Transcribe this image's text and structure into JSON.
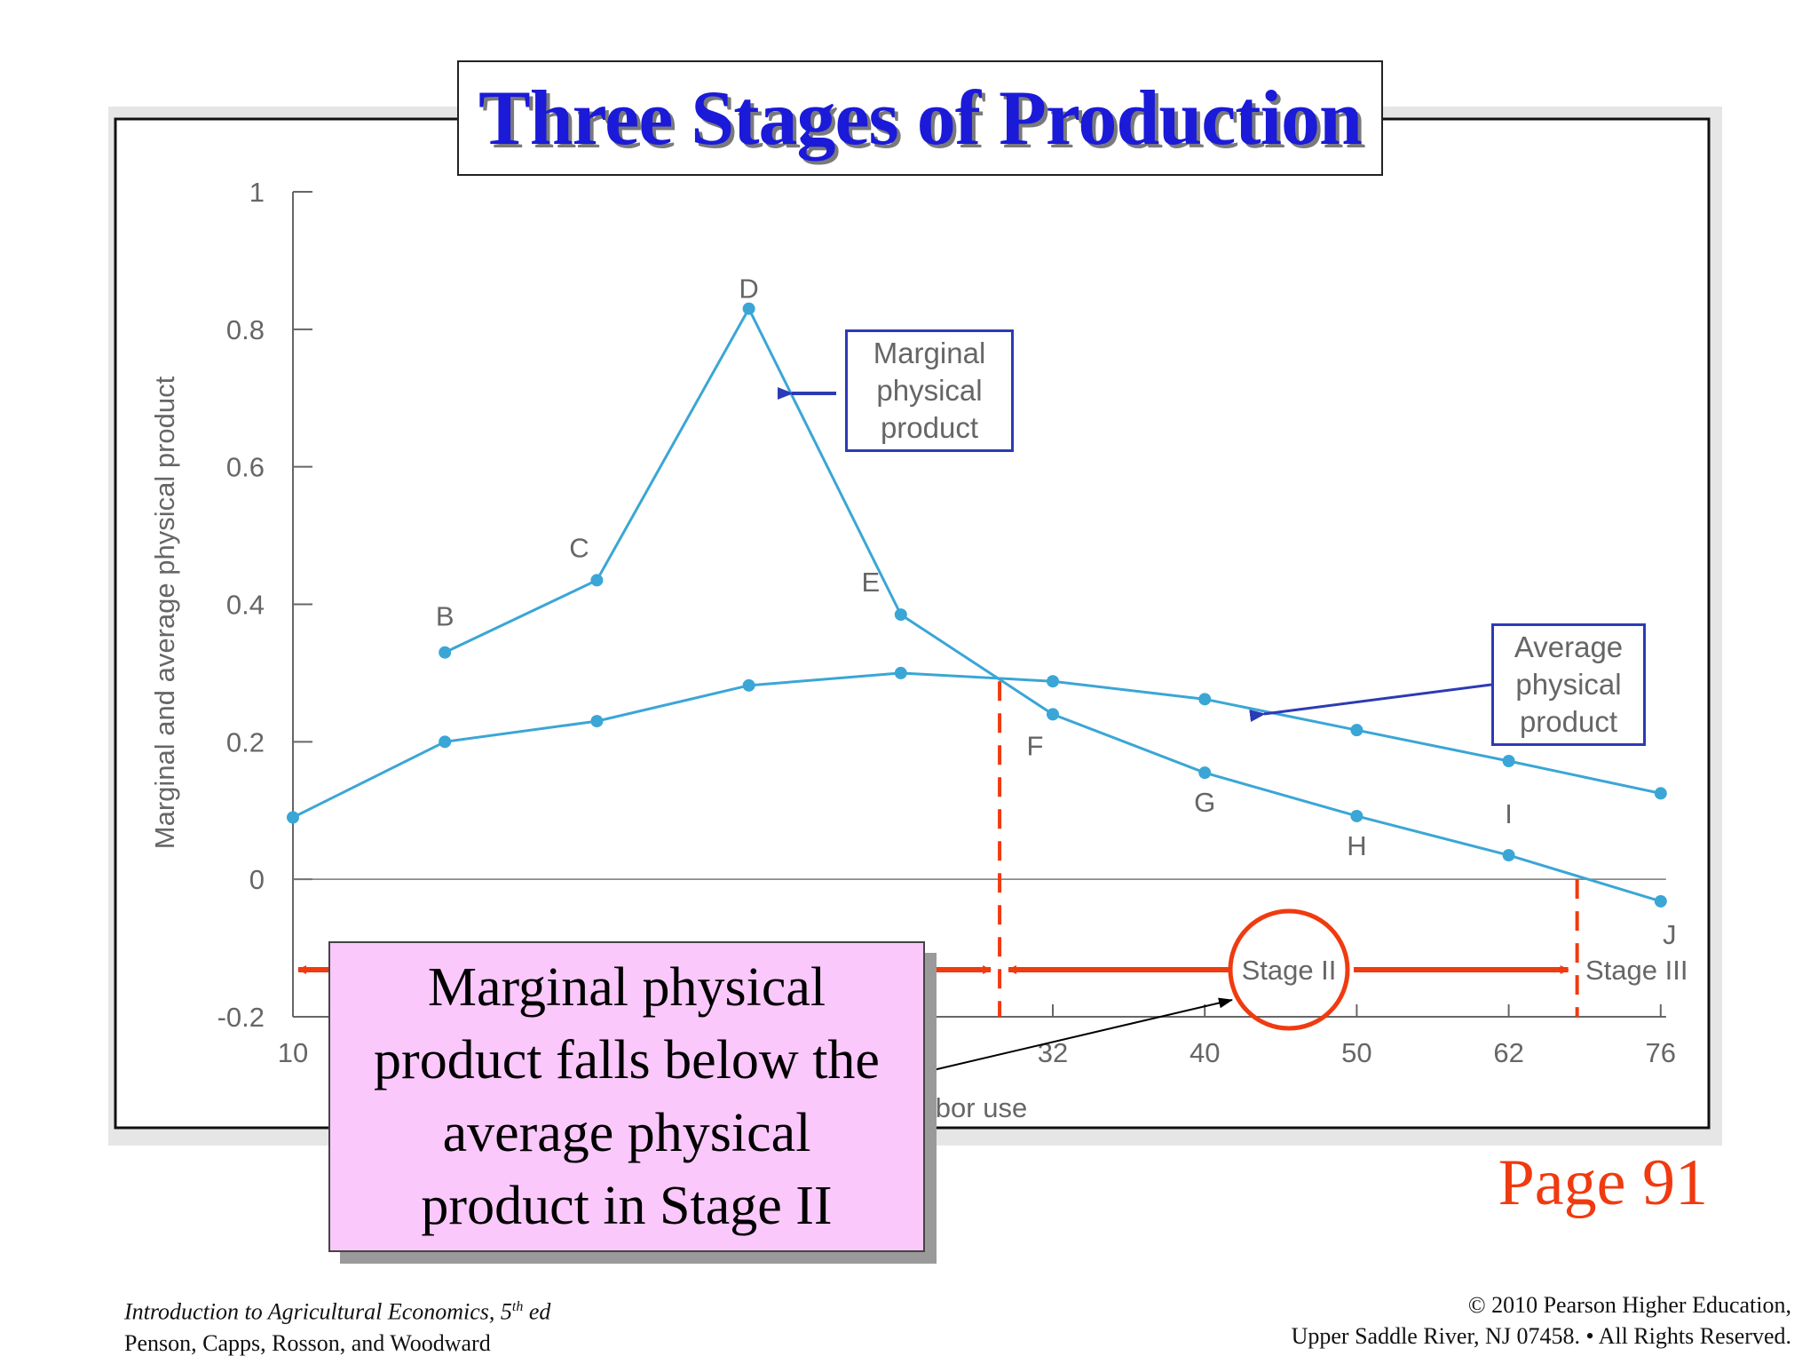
{
  "title": "Three Stages of Production",
  "legend": {
    "mpp": [
      "Marginal",
      "physical",
      "product"
    ],
    "app": [
      "Average",
      "physical",
      "product"
    ]
  },
  "callout_lines": [
    "Marginal physical",
    "product falls below the",
    "average physical",
    "product in Stage II"
  ],
  "page_ref": "Page 91",
  "footer": {
    "book_title": "Introduction to Agricultural Economics, 5",
    "edition_sup": "th",
    "edition_suffix": " ed",
    "authors": "Penson, Capps, Rosson, and Woodward",
    "copyright": "© 2010 Pearson Higher Education,",
    "address": "Upper Saddle River, NJ 07458. • All Rights Reserved."
  },
  "colors": {
    "curve": "#3aa6d6",
    "title": "#1a1ad8",
    "stage_marker": "#f03a10",
    "legend_border": "#2b3bb5",
    "callout_bg": "#fbc8fb"
  },
  "chart_data": {
    "type": "line",
    "title": "Three Stages of Production",
    "ylabel": "Marginal and average physical product",
    "xlabel": "…bor use",
    "x_ticks": [
      "10",
      "32",
      "40",
      "50",
      "62",
      "76"
    ],
    "y_ticks": [
      "1",
      "0.8",
      "0.6",
      "0.4",
      "0.2",
      "0",
      "-0.2"
    ],
    "ylim": [
      -0.2,
      1
    ],
    "x_positions": [
      0,
      1,
      2,
      3,
      4,
      5,
      6,
      7,
      8,
      9
    ],
    "series": [
      {
        "name": "Marginal physical product",
        "points": [
          {
            "x": 1,
            "y": 0.33,
            "label": "B"
          },
          {
            "x": 2,
            "y": 0.435,
            "label": "C"
          },
          {
            "x": 3,
            "y": 0.83,
            "label": "D"
          },
          {
            "x": 4,
            "y": 0.385,
            "label": "E"
          },
          {
            "x": 5,
            "y": 0.24,
            "label": "F"
          },
          {
            "x": 6,
            "y": 0.155,
            "label": "G"
          },
          {
            "x": 7,
            "y": 0.092,
            "label": "H"
          },
          {
            "x": 8,
            "y": 0.035,
            "label": "I"
          },
          {
            "x": 9,
            "y": -0.032,
            "label": "J"
          }
        ]
      },
      {
        "name": "Average physical product",
        "points": [
          {
            "x": 0,
            "y": 0.09
          },
          {
            "x": 1,
            "y": 0.2
          },
          {
            "x": 2,
            "y": 0.23
          },
          {
            "x": 3,
            "y": 0.282
          },
          {
            "x": 4,
            "y": 0.3
          },
          {
            "x": 5,
            "y": 0.288
          },
          {
            "x": 6,
            "y": 0.262
          },
          {
            "x": 7,
            "y": 0.217
          },
          {
            "x": 8,
            "y": 0.172
          },
          {
            "x": 9,
            "y": 0.125
          }
        ]
      }
    ],
    "stage_boundaries": [
      4.65,
      8.45
    ],
    "stages": [
      "Stage II",
      "Stage III"
    ]
  }
}
